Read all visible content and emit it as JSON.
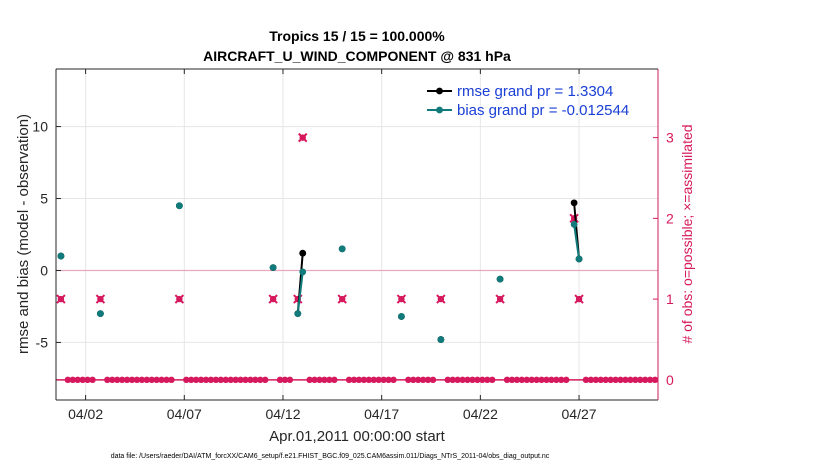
{
  "chart_data": {
    "type": "line",
    "title_line1": "Tropics 15 / 15 = 100.000%",
    "title_line2": "AIRCRAFT_U_WIND_COMPONENT @ 831 hPa",
    "xlabel": "Apr.01,2011 00:00:00 start",
    "ylabel": "rmse and bias (model - observation)",
    "y2label": "# of obs: o=possible; ×=assimilated",
    "footnote": "data file: /Users/raeder/DAI/ATM_forcXX/CAM6_setup/f.e21.FHIST_BGC.f09_025.CAM6assim.011/Diags_NTrS_2011-04/obs_diag_output.nc",
    "xlim": [
      0.5,
      31.0
    ],
    "ylim": [
      -9,
      14
    ],
    "y2lim": [
      -0.25,
      3.85
    ],
    "x_ticks": [
      {
        "value": 2,
        "label": "04/02"
      },
      {
        "value": 7,
        "label": "04/07"
      },
      {
        "value": 12,
        "label": "04/12"
      },
      {
        "value": 17,
        "label": "04/17"
      },
      {
        "value": 22,
        "label": "04/22"
      },
      {
        "value": 27,
        "label": "04/27"
      }
    ],
    "y_ticks": [
      {
        "value": -5,
        "label": "-5"
      },
      {
        "value": 0,
        "label": "0"
      },
      {
        "value": 5,
        "label": "5"
      },
      {
        "value": 10,
        "label": "10"
      }
    ],
    "y2_ticks": [
      {
        "value": 0,
        "label": "0"
      },
      {
        "value": 1,
        "label": "1"
      },
      {
        "value": 2,
        "label": "2"
      },
      {
        "value": 3,
        "label": "3"
      }
    ],
    "grid": true,
    "legend_position": "top-right",
    "series": [
      {
        "name": "rmse grand pr = 1.3304",
        "axis": "left",
        "color": "#000000",
        "points": [
          [
            0.75,
            1.0
          ],
          [
            2.75,
            -3.0
          ],
          [
            6.75,
            4.5
          ],
          [
            11.5,
            0.2
          ],
          [
            12.75,
            -3.0
          ],
          [
            13.0,
            1.2
          ],
          [
            15.0,
            1.5
          ],
          [
            18.0,
            -3.2
          ],
          [
            20.0,
            -4.8
          ],
          [
            23.0,
            -0.6
          ],
          [
            26.75,
            4.7
          ],
          [
            27.0,
            0.8
          ]
        ],
        "segments": [
          [
            [
              12.75,
              -3.0
            ],
            [
              13.0,
              1.2
            ]
          ],
          [
            [
              26.75,
              4.7
            ],
            [
              27.0,
              0.8
            ]
          ]
        ]
      },
      {
        "name": "bias grand pr = -0.012544",
        "axis": "left",
        "color": "#117a7a",
        "points": [
          [
            0.75,
            1.0
          ],
          [
            2.75,
            -3.0
          ],
          [
            6.75,
            4.5
          ],
          [
            11.5,
            0.2
          ],
          [
            12.75,
            -3.0
          ],
          [
            13.0,
            -0.1
          ],
          [
            15.0,
            1.5
          ],
          [
            18.0,
            -3.2
          ],
          [
            20.0,
            -4.8
          ],
          [
            23.0,
            -0.6
          ],
          [
            26.75,
            3.2
          ],
          [
            27.0,
            0.8
          ]
        ],
        "segments": [
          [
            [
              12.75,
              -3.0
            ],
            [
              13.0,
              -0.1
            ]
          ],
          [
            [
              26.75,
              3.2
            ],
            [
              27.0,
              0.8
            ]
          ]
        ]
      },
      {
        "name": "obs possible",
        "axis": "right",
        "marker": "o",
        "color": "#d6195c",
        "points": [
          [
            0.75,
            1
          ],
          [
            2.75,
            1
          ],
          [
            6.75,
            1
          ],
          [
            11.5,
            1
          ],
          [
            12.75,
            1
          ],
          [
            13.0,
            3
          ],
          [
            15.0,
            1
          ],
          [
            18.0,
            1
          ],
          [
            20.0,
            1
          ],
          [
            23.0,
            1
          ],
          [
            26.75,
            2
          ],
          [
            27.0,
            1
          ]
        ]
      },
      {
        "name": "obs assimilated",
        "axis": "right",
        "marker": "x",
        "color": "#d6195c",
        "points": [
          [
            0.75,
            1
          ],
          [
            2.75,
            1
          ],
          [
            6.75,
            1
          ],
          [
            11.5,
            1
          ],
          [
            12.75,
            1
          ],
          [
            13.0,
            3
          ],
          [
            15.0,
            1
          ],
          [
            18.0,
            1
          ],
          [
            20.0,
            1
          ],
          [
            23.0,
            1
          ],
          [
            26.75,
            2
          ],
          [
            27.0,
            1
          ]
        ],
        "zero_band_x": [
          0.5,
          31.0
        ]
      }
    ]
  }
}
